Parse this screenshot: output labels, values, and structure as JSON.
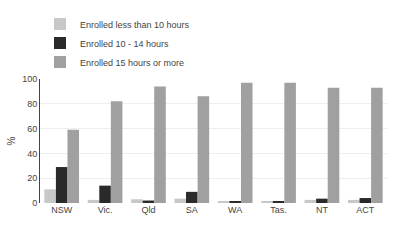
{
  "chart_data": {
    "type": "bar",
    "categories": [
      "NSW",
      "Vic.",
      "Qld",
      "SA",
      "WA",
      "Tas.",
      "NT",
      "ACT"
    ],
    "series": [
      {
        "name": "Enrolled less than 10 hours",
        "color": "#c8c8c8",
        "values": [
          11,
          2.5,
          3,
          3.5,
          1,
          1,
          2.5,
          2.5
        ]
      },
      {
        "name": "Enrolled 10 - 14 hours",
        "color": "#2a2a2a",
        "values": [
          29,
          14,
          2,
          9,
          1.5,
          1.5,
          3.5,
          4
        ]
      },
      {
        "name": "Enrolled 15 hours or more",
        "color": "#a0a0a0",
        "values": [
          59,
          82,
          94,
          86,
          97,
          97,
          93,
          93
        ]
      }
    ],
    "ylabel": "%",
    "ylim": [
      0,
      100
    ],
    "yticks": [
      0,
      20,
      40,
      60,
      80,
      100
    ],
    "grid": true,
    "legend": "upper left"
  }
}
